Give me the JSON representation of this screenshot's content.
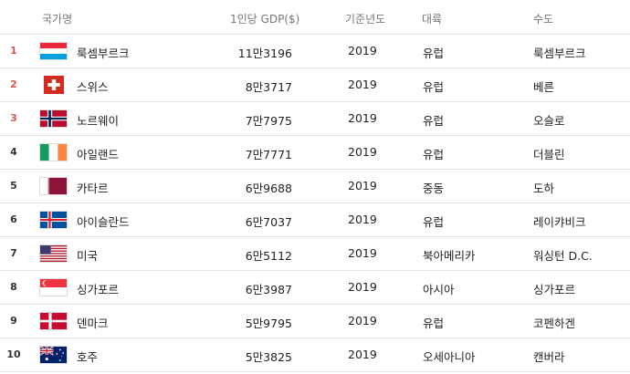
{
  "header": {
    "country": "국가명",
    "gdp": "1인당 GDP($)",
    "year": "기준년도",
    "continent": "대륙",
    "capital": "수도"
  },
  "rows": [
    {
      "rank": "1",
      "flag": "luxembourg-flag-icon",
      "name": "룩셈부르크",
      "gdp": "11만3196",
      "year": "2019",
      "continent": "유럽",
      "capital": "룩셈부르크"
    },
    {
      "rank": "2",
      "flag": "switzerland-flag-icon",
      "name": "스위스",
      "gdp": "8만3717",
      "year": "2019",
      "continent": "유럽",
      "capital": "베른"
    },
    {
      "rank": "3",
      "flag": "norway-flag-icon",
      "name": "노르웨이",
      "gdp": "7만7975",
      "year": "2019",
      "continent": "유럽",
      "capital": "오슬로"
    },
    {
      "rank": "4",
      "flag": "ireland-flag-icon",
      "name": "아일랜드",
      "gdp": "7만7771",
      "year": "2019",
      "continent": "유럽",
      "capital": "더블린"
    },
    {
      "rank": "5",
      "flag": "qatar-flag-icon",
      "name": "카타르",
      "gdp": "6만9688",
      "year": "2019",
      "continent": "중동",
      "capital": "도하"
    },
    {
      "rank": "6",
      "flag": "iceland-flag-icon",
      "name": "아이슬란드",
      "gdp": "6만7037",
      "year": "2019",
      "continent": "유럽",
      "capital": "레이캬비크"
    },
    {
      "rank": "7",
      "flag": "usa-flag-icon",
      "name": "미국",
      "gdp": "6만5112",
      "year": "2019",
      "continent": "북아메리카",
      "capital": "워싱턴 D.C."
    },
    {
      "rank": "8",
      "flag": "singapore-flag-icon",
      "name": "싱가포르",
      "gdp": "6만3987",
      "year": "2019",
      "continent": "아시아",
      "capital": "싱가포르"
    },
    {
      "rank": "9",
      "flag": "denmark-flag-icon",
      "name": "덴마크",
      "gdp": "5만9795",
      "year": "2019",
      "continent": "유럽",
      "capital": "코펜하겐"
    },
    {
      "rank": "10",
      "flag": "australia-flag-icon",
      "name": "호주",
      "gdp": "5만3825",
      "year": "2019",
      "continent": "오세아니아",
      "capital": "캔버라"
    }
  ],
  "colors": {
    "rank_top": "#d9534f",
    "rank_rest": "#333333",
    "divider": "#e3e3e3",
    "header_text": "#777777"
  }
}
